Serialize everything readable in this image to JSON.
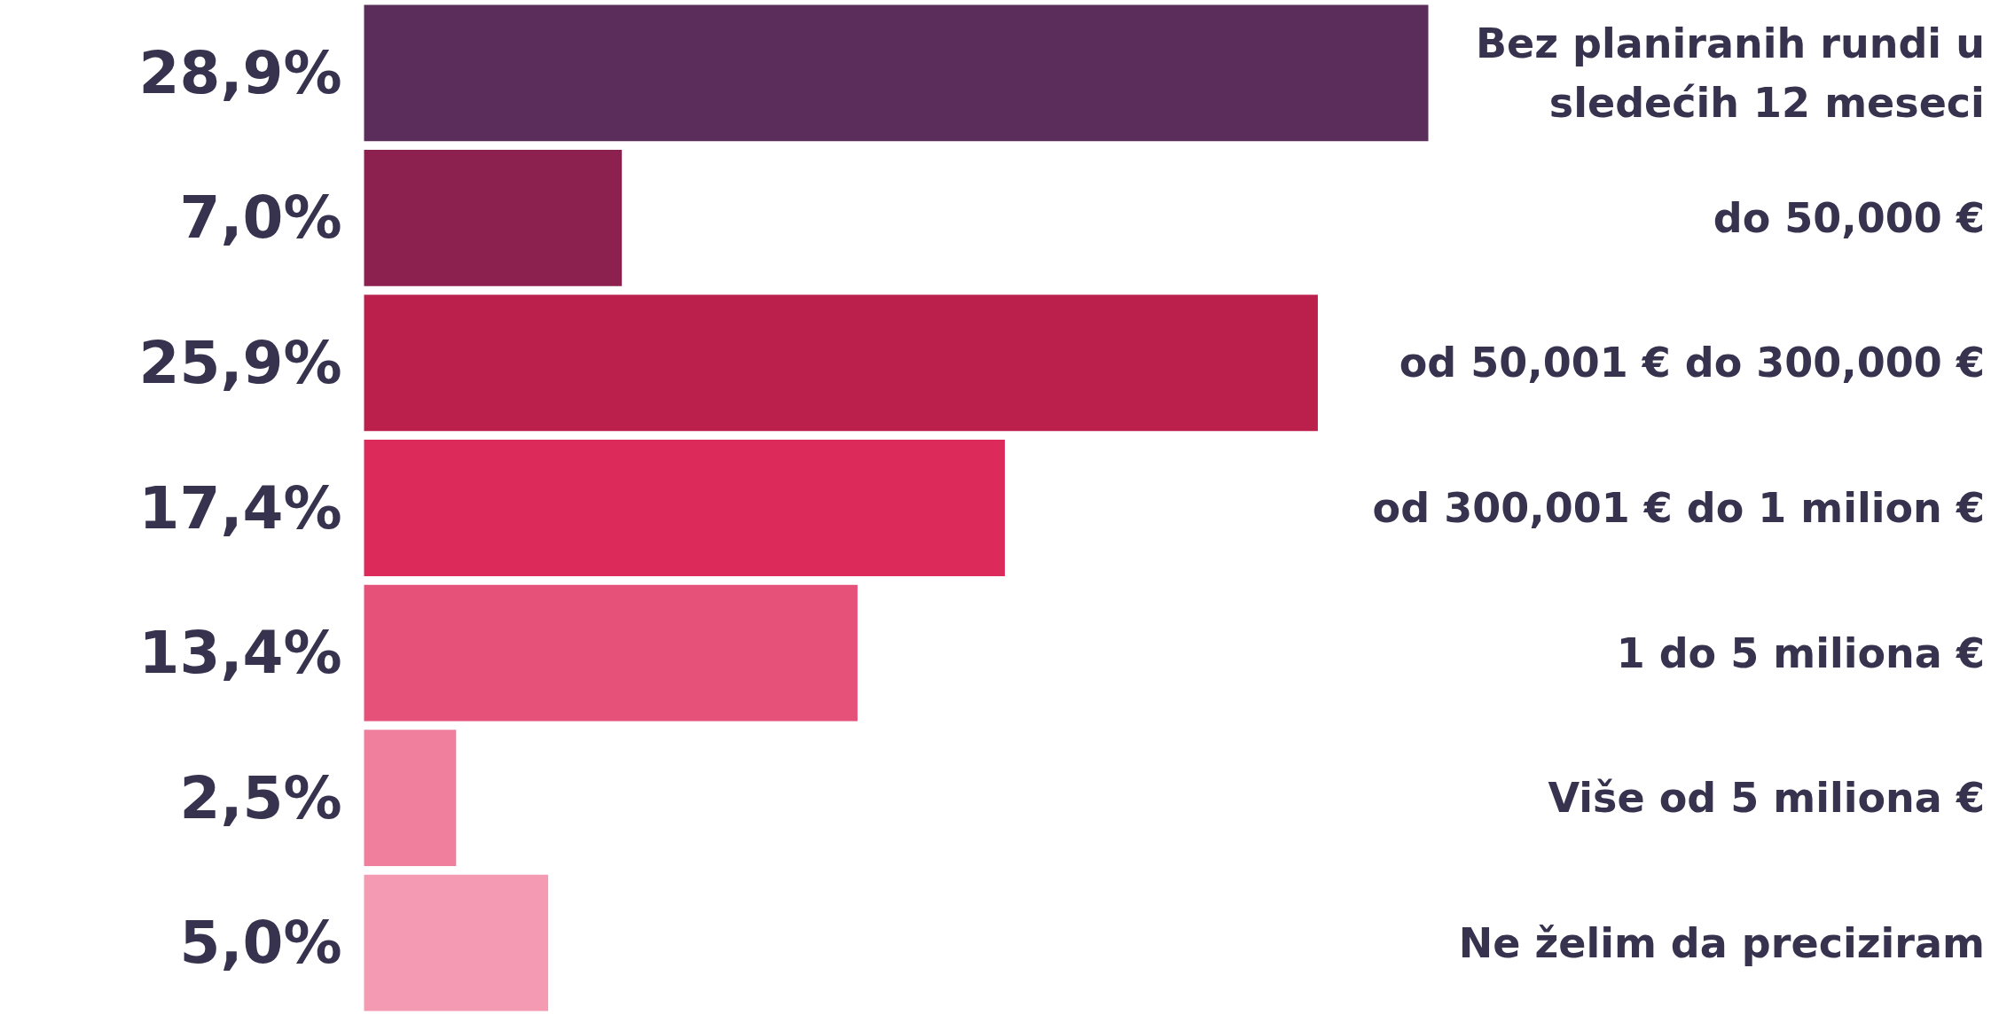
{
  "chart_data": {
    "type": "bar",
    "orientation": "horizontal",
    "categories": [
      "Bez planiranih rundi u sledećih 12 meseci",
      "do 50,000 €",
      "od 50,001 € do 300,000 €",
      "od 300,001 € do 1 milion €",
      "1 do 5 miliona €",
      "Više od 5 miliona €",
      "Ne želim da preciziram"
    ],
    "values": [
      28.9,
      7.0,
      25.9,
      17.4,
      13.4,
      2.5,
      5.0
    ],
    "value_labels": [
      "28,9%",
      "7,0%",
      "25,9%",
      "17,4%",
      "13,4%",
      "2,5%",
      "5,0%"
    ],
    "colors": [
      "#5a2d5a",
      "#8c2150",
      "#bb1f4c",
      "#dc2a5a",
      "#e6517a",
      "#ef7f9c",
      "#f49ab2"
    ],
    "grid": false
  }
}
